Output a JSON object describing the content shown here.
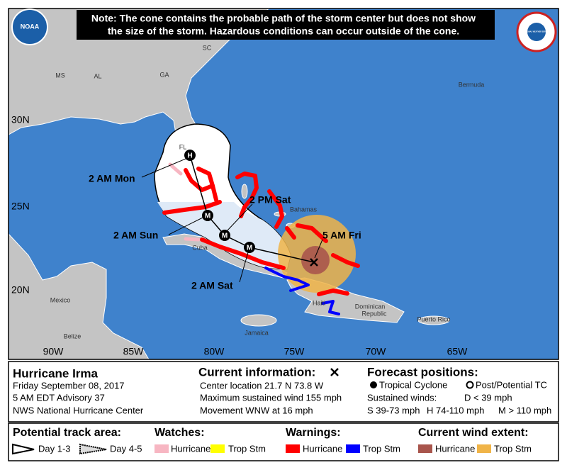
{
  "note": [
    "Note: The cone contains the probable path of the storm center but does not show",
    "the size of the storm. Hazardous conditions can occur outside of the cone."
  ],
  "logos": {
    "noaa": "NOAA",
    "nws": "NATIONAL WEATHER SERVICE"
  },
  "map": {
    "places": [
      "MS",
      "AL",
      "GA",
      "SC",
      "FL",
      "Bermuda",
      "Bahamas",
      "Cuba",
      "Mexico",
      "Belize",
      "Jamaica",
      "Haiti",
      "Dominican",
      "Republic",
      "Puerto Rico"
    ],
    "latitudes": [
      "30N",
      "25N",
      "20N"
    ],
    "longitudes": [
      "90W",
      "85W",
      "80W",
      "75W",
      "70W",
      "65W"
    ],
    "forecast_labels": [
      "2 AM Mon",
      "2 PM Sat",
      "5 AM Fri",
      "2 AM Sun",
      "2 AM Sat"
    ],
    "markers": [
      "H",
      "M",
      "M",
      "M",
      "M"
    ]
  },
  "storm": {
    "name": "Hurricane Irma",
    "date": "Friday September 08, 2017",
    "advisory": "5 AM EDT Advisory 37",
    "center": "NWS National Hurricane Center"
  },
  "current_information": {
    "heading": "Current information:",
    "lines": [
      "Center location 21.7 N 73.8 W",
      "Maximum sustained wind 155 mph",
      "Movement WNW at 16 mph"
    ]
  },
  "forecast_positions": {
    "heading": "Forecast positions:",
    "tropical": "Tropical Cyclone",
    "post": "Post/Potential TC",
    "winds": "Sustained winds:",
    "d": "D < 39 mph",
    "s": "S 39-73 mph",
    "h": "H 74-110 mph",
    "m": "M > 110 mph"
  },
  "legend": {
    "track": {
      "heading": "Potential track area:",
      "day13": "Day 1-3",
      "day45": "Day 4-5"
    },
    "watches": {
      "heading": "Watches:",
      "hurricane": "Hurricane",
      "trop": "Trop Stm"
    },
    "warnings": {
      "heading": "Warnings:",
      "hurricane": "Hurricane",
      "trop": "Trop Stm"
    },
    "wind": {
      "heading": "Current wind extent:",
      "hurricane": "Hurricane",
      "trop": "Trop Stm"
    }
  }
}
